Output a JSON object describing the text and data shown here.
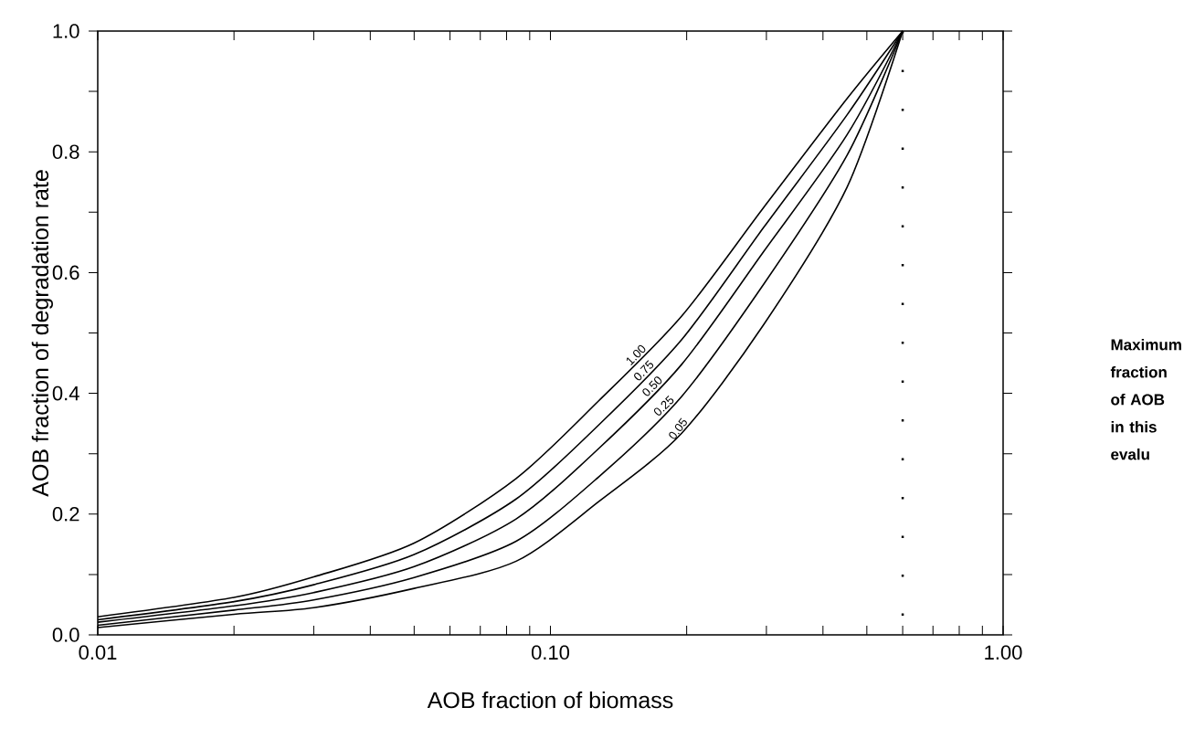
{
  "chart_data": {
    "type": "line",
    "xlabel": "AOB fraction of biomass",
    "ylabel": "AOB fraction of degradation rate",
    "legend_title": "Maximum fraction of AOB in this evalu",
    "log": "x",
    "xlim": [
      0.01,
      1.0
    ],
    "ylim": [
      0.0,
      1.0
    ],
    "xticks": [
      {
        "value": 0.01,
        "label": "0.01"
      },
      {
        "value": 0.02,
        "label": null
      },
      {
        "value": 0.03,
        "label": null
      },
      {
        "value": 0.04,
        "label": null
      },
      {
        "value": 0.05,
        "label": null
      },
      {
        "value": 0.06,
        "label": null
      },
      {
        "value": 0.07,
        "label": null
      },
      {
        "value": 0.08,
        "label": null
      },
      {
        "value": 0.09,
        "label": null
      },
      {
        "value": 0.1,
        "label": "0.10"
      },
      {
        "value": 0.2,
        "label": null
      },
      {
        "value": 0.3,
        "label": null
      },
      {
        "value": 0.4,
        "label": null
      },
      {
        "value": 0.5,
        "label": null
      },
      {
        "value": 0.6,
        "label": null
      },
      {
        "value": 0.7,
        "label": null
      },
      {
        "value": 0.8,
        "label": null
      },
      {
        "value": 0.9,
        "label": null
      },
      {
        "value": 1.0,
        "label": "1.00"
      }
    ],
    "yticks": [
      {
        "value": 0.0,
        "label": "0.0"
      },
      {
        "value": 0.1,
        "label": null
      },
      {
        "value": 0.2,
        "label": "0.2"
      },
      {
        "value": 0.3,
        "label": null
      },
      {
        "value": 0.4,
        "label": "0.4"
      },
      {
        "value": 0.5,
        "label": null
      },
      {
        "value": 0.6,
        "label": "0.6"
      },
      {
        "value": 0.7,
        "label": null
      },
      {
        "value": 0.8,
        "label": "0.8"
      },
      {
        "value": 0.9,
        "label": null
      },
      {
        "value": 1.0,
        "label": "1.0"
      }
    ],
    "x": [
      0.01,
      0.02,
      0.03,
      0.05,
      0.084,
      0.128,
      0.195,
      0.296,
      0.452,
      0.6
    ],
    "series": [
      {
        "name": "1.00",
        "color": "#000000",
        "values": [
          0.03,
          0.062,
          0.096,
          0.152,
          0.259,
          0.388,
          0.528,
          0.708,
          0.888,
          1.0
        ]
      },
      {
        "name": "0.75",
        "color": "#000000",
        "values": [
          0.025,
          0.055,
          0.083,
          0.133,
          0.225,
          0.348,
          0.489,
          0.675,
          0.861,
          1.0
        ]
      },
      {
        "name": "0.50",
        "color": "#000000",
        "values": [
          0.021,
          0.048,
          0.07,
          0.113,
          0.192,
          0.309,
          0.448,
          0.635,
          0.828,
          1.0
        ]
      },
      {
        "name": "0.25",
        "color": "#000000",
        "values": [
          0.016,
          0.041,
          0.058,
          0.095,
          0.155,
          0.262,
          0.395,
          0.581,
          0.794,
          1.0
        ]
      },
      {
        "name": "0.05",
        "color": "#000000",
        "values": [
          0.012,
          0.034,
          0.045,
          0.077,
          0.122,
          0.221,
          0.334,
          0.514,
          0.741,
          1.0
        ]
      }
    ],
    "ref_lines": [
      {
        "axis": "x",
        "value": 0.6,
        "color": "#000000",
        "line_style": "dotted"
      }
    ],
    "grid": false,
    "legend": false,
    "marker": "none",
    "line_style": "solid"
  }
}
